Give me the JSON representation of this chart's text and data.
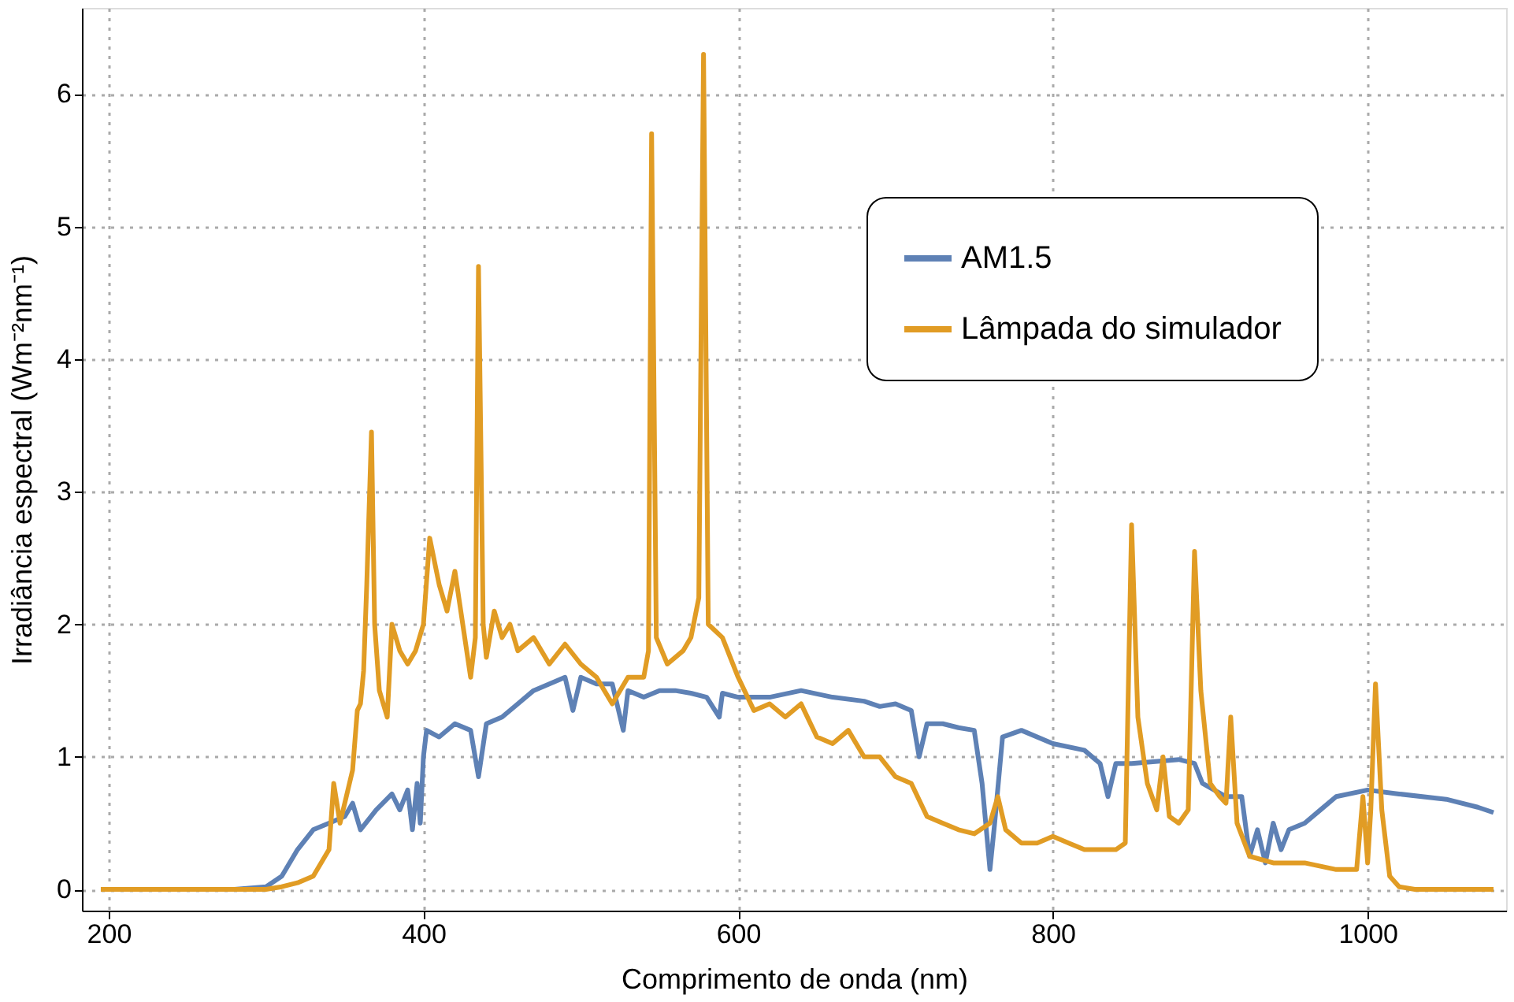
{
  "chart_data": {
    "type": "line",
    "xlabel": "Comprimento de onda (nm)",
    "ylabel": "Irradiância espectral (Wm⁻²nm⁻¹)",
    "xlim": [
      183,
      1088
    ],
    "ylim": [
      -0.16,
      6.65
    ],
    "xticks": [
      200,
      400,
      600,
      800,
      1000
    ],
    "yticks": [
      0,
      1,
      2,
      3,
      4,
      5,
      6
    ],
    "grid": true,
    "legend": "top right",
    "line_style": "solid",
    "marker": "none",
    "series": [
      {
        "name": "AM1.5",
        "color": "#5e81b5",
        "x": [
          195,
          280,
          300,
          310,
          320,
          330,
          340,
          350,
          355,
          360,
          370,
          380,
          385,
          390,
          393,
          396,
          398,
          400,
          402,
          410,
          420,
          430,
          435,
          440,
          450,
          460,
          470,
          480,
          490,
          495,
          500,
          510,
          520,
          527,
          530,
          540,
          550,
          560,
          570,
          580,
          588,
          590,
          600,
          620,
          640,
          660,
          680,
          690,
          700,
          710,
          715,
          720,
          730,
          740,
          750,
          755,
          760,
          763,
          768,
          780,
          800,
          820,
          830,
          835,
          840,
          850,
          880,
          890,
          895,
          910,
          920,
          925,
          930,
          935,
          940,
          945,
          950,
          960,
          970,
          980,
          1000,
          1020,
          1050,
          1070,
          1080
        ],
        "values": [
          0,
          0,
          0.02,
          0.1,
          0.3,
          0.45,
          0.5,
          0.55,
          0.65,
          0.45,
          0.6,
          0.72,
          0.6,
          0.75,
          0.45,
          0.8,
          0.5,
          1.0,
          1.2,
          1.15,
          1.25,
          1.2,
          0.85,
          1.25,
          1.3,
          1.4,
          1.5,
          1.55,
          1.6,
          1.35,
          1.6,
          1.55,
          1.55,
          1.2,
          1.5,
          1.45,
          1.5,
          1.5,
          1.48,
          1.45,
          1.3,
          1.48,
          1.45,
          1.45,
          1.5,
          1.45,
          1.42,
          1.38,
          1.4,
          1.35,
          1.0,
          1.25,
          1.25,
          1.22,
          1.2,
          0.8,
          0.15,
          0.5,
          1.15,
          1.2,
          1.1,
          1.05,
          0.95,
          0.7,
          0.95,
          0.95,
          0.98,
          0.95,
          0.8,
          0.7,
          0.7,
          0.25,
          0.45,
          0.2,
          0.5,
          0.3,
          0.45,
          0.5,
          0.6,
          0.7,
          0.75,
          0.72,
          0.68,
          0.62,
          0.58
        ]
      },
      {
        "name": "Lâmpada do simulador",
        "color": "#e19c24",
        "x": [
          195,
          300,
          310,
          320,
          330,
          340,
          343,
          347,
          355,
          358,
          360,
          362,
          364,
          367,
          369,
          372,
          377,
          380,
          385,
          390,
          395,
          400,
          404,
          410,
          415,
          420,
          425,
          430,
          433,
          435,
          438,
          440,
          445,
          450,
          455,
          460,
          470,
          480,
          490,
          500,
          510,
          520,
          530,
          540,
          543,
          545,
          548,
          555,
          565,
          570,
          575,
          578,
          581,
          590,
          600,
          610,
          620,
          630,
          640,
          650,
          660,
          670,
          680,
          690,
          700,
          710,
          720,
          730,
          740,
          750,
          760,
          765,
          770,
          780,
          790,
          800,
          810,
          820,
          840,
          846,
          850,
          854,
          860,
          866,
          870,
          874,
          880,
          886,
          890,
          894,
          900,
          906,
          910,
          913,
          917,
          925,
          940,
          960,
          980,
          993,
          997,
          1000,
          1002,
          1005,
          1009,
          1014,
          1020,
          1030,
          1080
        ],
        "values": [
          0,
          0,
          0.02,
          0.05,
          0.1,
          0.3,
          0.8,
          0.5,
          0.9,
          1.35,
          1.4,
          1.65,
          2.3,
          3.45,
          2.0,
          1.5,
          1.3,
          2.0,
          1.8,
          1.7,
          1.8,
          2.0,
          2.65,
          2.3,
          2.1,
          2.4,
          2.0,
          1.6,
          1.9,
          4.7,
          2.0,
          1.75,
          2.1,
          1.9,
          2.0,
          1.8,
          1.9,
          1.7,
          1.85,
          1.7,
          1.6,
          1.4,
          1.6,
          1.6,
          1.8,
          5.7,
          1.9,
          1.7,
          1.8,
          1.9,
          2.2,
          6.3,
          2.0,
          1.9,
          1.6,
          1.35,
          1.4,
          1.3,
          1.4,
          1.15,
          1.1,
          1.2,
          1.0,
          1.0,
          0.85,
          0.8,
          0.55,
          0.5,
          0.45,
          0.42,
          0.5,
          0.7,
          0.45,
          0.35,
          0.35,
          0.4,
          0.35,
          0.3,
          0.3,
          0.35,
          2.75,
          1.3,
          0.8,
          0.6,
          1.0,
          0.55,
          0.5,
          0.6,
          2.55,
          1.5,
          0.8,
          0.7,
          0.65,
          1.3,
          0.5,
          0.25,
          0.2,
          0.2,
          0.15,
          0.15,
          0.7,
          0.2,
          0.6,
          1.55,
          0.6,
          0.1,
          0.02,
          0.0,
          0.0
        ]
      }
    ]
  }
}
